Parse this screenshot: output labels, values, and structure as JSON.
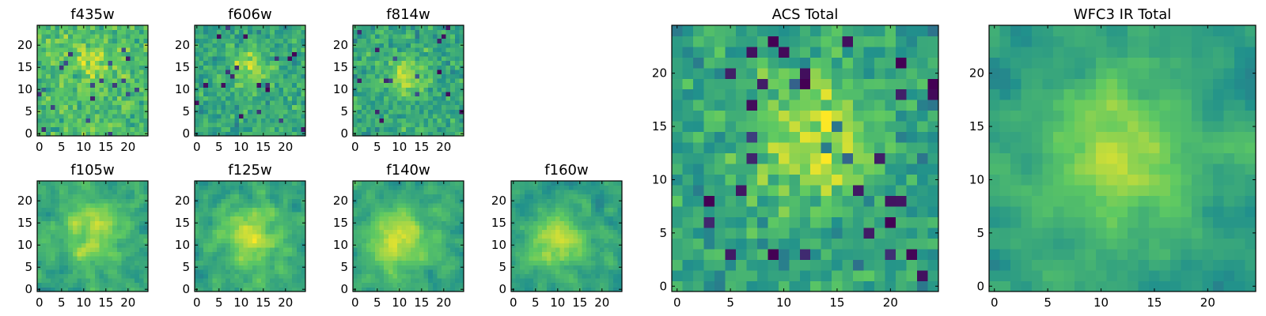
{
  "chart_data": {
    "type": "heatmap",
    "colormap": "viridis",
    "cmap_stops": [
      "#440154",
      "#3b528b",
      "#21918c",
      "#5ec962",
      "#fde725"
    ],
    "grid_size": 25,
    "panels": [
      {
        "title": "f435w",
        "xticks": [
          0,
          5,
          10,
          15,
          20
        ],
        "yticks": [
          0,
          5,
          10,
          15,
          20
        ],
        "center": [
          12,
          16
        ],
        "peak": 0.15,
        "sigma": 4,
        "noise": 0.22,
        "base": 0.68,
        "seed": 435,
        "smooth": 0
      },
      {
        "title": "f606w",
        "xticks": [
          0,
          5,
          10,
          15,
          20
        ],
        "yticks": [
          0,
          5,
          10,
          15,
          20
        ],
        "center": [
          12,
          15
        ],
        "peak": 0.3,
        "sigma": 3,
        "noise": 0.2,
        "base": 0.6,
        "seed": 606,
        "smooth": 0
      },
      {
        "title": "f814w",
        "xticks": [
          0,
          5,
          10,
          15,
          20
        ],
        "yticks": [
          0,
          5,
          10,
          15,
          20
        ],
        "center": [
          12,
          13
        ],
        "peak": 0.28,
        "sigma": 3,
        "noise": 0.2,
        "base": 0.6,
        "seed": 814,
        "smooth": 0
      },
      {
        "title": "f105w",
        "xticks": [
          0,
          5,
          10,
          15,
          20
        ],
        "yticks": [
          0,
          5,
          10,
          15,
          20
        ],
        "center": [
          12,
          13
        ],
        "peak": 0.3,
        "sigma": 5,
        "noise": 0.22,
        "base": 0.6,
        "seed": 105,
        "smooth": 1
      },
      {
        "title": "f125w",
        "xticks": [
          0,
          5,
          10,
          15,
          20
        ],
        "yticks": [
          0,
          5,
          10,
          15,
          20
        ],
        "center": [
          12,
          12
        ],
        "peak": 0.3,
        "sigma": 5,
        "noise": 0.22,
        "base": 0.58,
        "seed": 125,
        "smooth": 1
      },
      {
        "title": "f140w",
        "xticks": [
          0,
          5,
          10,
          15,
          20
        ],
        "yticks": [
          0,
          5,
          10,
          15,
          20
        ],
        "center": [
          10,
          11
        ],
        "peak": 0.35,
        "sigma": 5,
        "noise": 0.2,
        "base": 0.58,
        "seed": 140,
        "smooth": 1
      },
      {
        "title": "f160w",
        "xticks": [
          0,
          5,
          10,
          15,
          20
        ],
        "yticks": [
          0,
          5,
          10,
          15,
          20
        ],
        "center": [
          10,
          11
        ],
        "peak": 0.35,
        "sigma": 5,
        "noise": 0.2,
        "base": 0.55,
        "seed": 160,
        "smooth": 1
      },
      {
        "title": "ACS Total",
        "xticks": [
          0,
          5,
          10,
          15,
          20
        ],
        "yticks": [
          0,
          5,
          10,
          15,
          20
        ],
        "center": [
          13,
          14
        ],
        "peak": 0.32,
        "sigma": 4,
        "noise": 0.22,
        "base": 0.58,
        "seed": 777,
        "smooth": 0
      },
      {
        "title": "WFC3 IR Total",
        "xticks": [
          0,
          5,
          10,
          15,
          20
        ],
        "yticks": [
          0,
          5,
          10,
          15,
          20
        ],
        "center": [
          12,
          12
        ],
        "peak": 0.35,
        "sigma": 5,
        "noise": 0.18,
        "base": 0.55,
        "seed": 888,
        "smooth": 1
      }
    ]
  }
}
